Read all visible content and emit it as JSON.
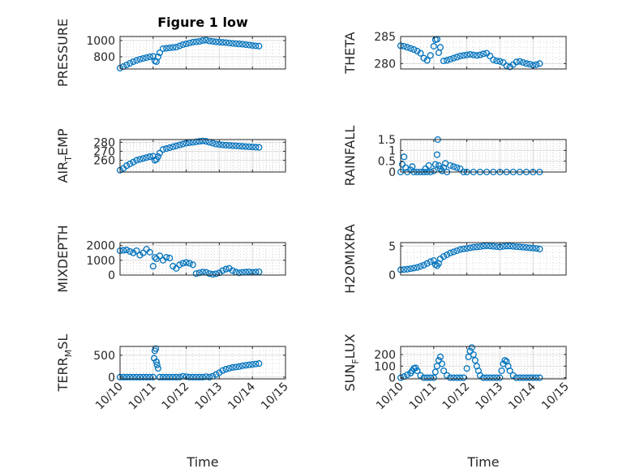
{
  "figure": {
    "marker_color": "#0072bd",
    "xlabel": "Time"
  },
  "chart_data": [
    {
      "type": "scatter",
      "title": "Figure 1 low",
      "ylabel": "PRESSURE",
      "xlabel": "",
      "xlim": [
        0,
        5
      ],
      "ylim": [
        650,
        1050
      ],
      "yticks": [
        800,
        1000
      ],
      "xticks": [
        0,
        1,
        2,
        3,
        4,
        5
      ],
      "xticklabels": [],
      "grid": true,
      "x": [
        0.0,
        0.1,
        0.2,
        0.3,
        0.4,
        0.5,
        0.6,
        0.7,
        0.8,
        0.9,
        1.0,
        1.05,
        1.1,
        1.15,
        1.2,
        1.3,
        1.4,
        1.5,
        1.6,
        1.7,
        1.8,
        1.9,
        2.0,
        2.1,
        2.2,
        2.3,
        2.4,
        2.5,
        2.6,
        2.7,
        2.8,
        2.9,
        3.0,
        3.1,
        3.2,
        3.3,
        3.4,
        3.5,
        3.6,
        3.7,
        3.8,
        3.9,
        4.0,
        4.1,
        4.2
      ],
      "y": [
        660,
        680,
        700,
        720,
        740,
        755,
        770,
        780,
        790,
        800,
        805,
        750,
        740,
        800,
        850,
        900,
        905,
        910,
        915,
        920,
        935,
        950,
        960,
        970,
        980,
        985,
        990,
        1000,
        1005,
        995,
        990,
        985,
        980,
        978,
        975,
        970,
        965,
        962,
        958,
        955,
        950,
        945,
        940,
        935,
        932
      ]
    },
    {
      "type": "scatter",
      "title": "",
      "ylabel": "THETA",
      "xlabel": "",
      "xlim": [
        0,
        5
      ],
      "ylim": [
        279,
        285
      ],
      "yticks": [
        280,
        285
      ],
      "xticks": [
        0,
        1,
        2,
        3,
        4,
        5
      ],
      "xticklabels": [],
      "grid": true,
      "x": [
        0.0,
        0.1,
        0.2,
        0.3,
        0.4,
        0.5,
        0.6,
        0.7,
        0.8,
        0.9,
        1.0,
        1.05,
        1.1,
        1.15,
        1.2,
        1.3,
        1.4,
        1.5,
        1.6,
        1.7,
        1.8,
        1.9,
        2.0,
        2.1,
        2.2,
        2.3,
        2.4,
        2.5,
        2.6,
        2.7,
        2.8,
        2.9,
        3.0,
        3.1,
        3.2,
        3.3,
        3.4,
        3.5,
        3.6,
        3.7,
        3.8,
        3.9,
        4.0,
        4.1,
        4.2
      ],
      "y": [
        283.3,
        283.2,
        283.0,
        282.8,
        282.6,
        282.3,
        281.9,
        281.0,
        280.6,
        281.5,
        283.2,
        284.4,
        284.5,
        282.0,
        283.0,
        280.5,
        280.6,
        280.8,
        281.0,
        281.2,
        281.4,
        281.5,
        281.6,
        281.7,
        281.6,
        281.5,
        281.6,
        281.8,
        281.9,
        281.4,
        280.7,
        280.5,
        280.4,
        280.2,
        279.6,
        279.4,
        279.8,
        280.3,
        280.4,
        280.2,
        280.0,
        279.9,
        279.7,
        279.8,
        280.0
      ]
    },
    {
      "type": "scatter",
      "title": "",
      "ylabel": "AIR_TEMP",
      "xlabel": "",
      "xlim": [
        0,
        5
      ],
      "ylim": [
        247,
        283
      ],
      "yticks": [
        260,
        270,
        280
      ],
      "xticks": [
        0,
        1,
        2,
        3,
        4,
        5
      ],
      "xticklabels": [],
      "grid": true,
      "x": [
        0.0,
        0.1,
        0.2,
        0.3,
        0.4,
        0.5,
        0.6,
        0.7,
        0.8,
        0.9,
        1.0,
        1.05,
        1.1,
        1.15,
        1.2,
        1.3,
        1.4,
        1.5,
        1.6,
        1.7,
        1.8,
        1.9,
        2.0,
        2.1,
        2.2,
        2.3,
        2.4,
        2.5,
        2.6,
        2.7,
        2.8,
        2.9,
        3.0,
        3.1,
        3.2,
        3.3,
        3.4,
        3.5,
        3.6,
        3.7,
        3.8,
        3.9,
        4.0,
        4.1,
        4.2
      ],
      "y": [
        249,
        251,
        254,
        256,
        258,
        260,
        261,
        262,
        263,
        264,
        264.5,
        260,
        261,
        264,
        268,
        272,
        273,
        274,
        275,
        276,
        277,
        278,
        279,
        279.5,
        280,
        280.5,
        281,
        281.5,
        281,
        280,
        279,
        278,
        277.5,
        277,
        276.8,
        276.5,
        276.2,
        276,
        275.8,
        275.5,
        275.2,
        275,
        274.8,
        274.5,
        274.3
      ]
    },
    {
      "type": "scatter",
      "title": "",
      "ylabel": "RAINFALL",
      "xlabel": "",
      "xlim": [
        0,
        5
      ],
      "ylim": [
        0,
        1.5
      ],
      "yticks": [
        0,
        0.5,
        1,
        1.5
      ],
      "xticks": [
        0,
        1,
        2,
        3,
        4,
        5
      ],
      "xticklabels": [],
      "grid": true,
      "x": [
        0.0,
        0.05,
        0.1,
        0.15,
        0.2,
        0.3,
        0.35,
        0.4,
        0.5,
        0.6,
        0.7,
        0.75,
        0.8,
        0.85,
        0.9,
        1.0,
        1.05,
        1.1,
        1.12,
        1.15,
        1.2,
        1.25,
        1.3,
        1.35,
        1.4,
        1.5,
        1.6,
        1.7,
        1.8,
        1.9,
        2.0,
        2.2,
        2.4,
        2.6,
        2.8,
        3.0,
        3.2,
        3.4,
        3.6,
        3.8,
        4.0,
        4.2
      ],
      "y": [
        0,
        0.35,
        0.7,
        0.2,
        0,
        0.1,
        0.25,
        0,
        0,
        0,
        0,
        0.15,
        0,
        0.3,
        0,
        0.05,
        0.35,
        0.8,
        1.5,
        0.3,
        0.15,
        0.05,
        0.2,
        0.4,
        0,
        0.3,
        0.25,
        0.2,
        0.15,
        0,
        0,
        0,
        0,
        0,
        0,
        0,
        0,
        0,
        0,
        0,
        0,
        0
      ]
    },
    {
      "type": "scatter",
      "title": "",
      "ylabel": "MIXDEPTH",
      "xlabel": "",
      "xlim": [
        0,
        5
      ],
      "ylim": [
        0,
        2200
      ],
      "yticks": [
        0,
        1000,
        2000
      ],
      "xticks": [
        0,
        1,
        2,
        3,
        4,
        5
      ],
      "xticklabels": [],
      "grid": true,
      "x": [
        0.0,
        0.1,
        0.2,
        0.3,
        0.4,
        0.5,
        0.6,
        0.7,
        0.8,
        0.9,
        1.0,
        1.05,
        1.1,
        1.2,
        1.3,
        1.4,
        1.5,
        1.6,
        1.7,
        1.8,
        1.9,
        2.0,
        2.1,
        2.2,
        2.3,
        2.4,
        2.5,
        2.6,
        2.7,
        2.8,
        2.9,
        3.0,
        3.1,
        3.2,
        3.3,
        3.4,
        3.5,
        3.6,
        3.7,
        3.8,
        3.9,
        4.0,
        4.1,
        4.2
      ],
      "y": [
        1650,
        1680,
        1700,
        1600,
        1500,
        1650,
        1350,
        1500,
        1750,
        1550,
        600,
        1200,
        1100,
        1300,
        1000,
        1200,
        1150,
        600,
        450,
        700,
        800,
        850,
        800,
        700,
        100,
        150,
        200,
        180,
        100,
        50,
        80,
        150,
        300,
        400,
        450,
        300,
        200,
        150,
        180,
        200,
        220,
        180,
        200,
        220
      ]
    },
    {
      "type": "scatter",
      "title": "",
      "ylabel": "H2OMIXRA",
      "xlabel": "",
      "xlim": [
        0,
        5
      ],
      "ylim": [
        0,
        5.6
      ],
      "yticks": [
        0,
        5
      ],
      "xticks": [
        0,
        1,
        2,
        3,
        4,
        5
      ],
      "xticklabels": [],
      "grid": true,
      "x": [
        0.0,
        0.1,
        0.2,
        0.3,
        0.4,
        0.5,
        0.6,
        0.7,
        0.8,
        0.9,
        1.0,
        1.05,
        1.1,
        1.15,
        1.2,
        1.3,
        1.4,
        1.5,
        1.6,
        1.7,
        1.8,
        1.9,
        2.0,
        2.1,
        2.2,
        2.3,
        2.4,
        2.5,
        2.6,
        2.7,
        2.8,
        2.9,
        3.0,
        3.1,
        3.2,
        3.3,
        3.4,
        3.5,
        3.6,
        3.7,
        3.8,
        3.9,
        4.0,
        4.1,
        4.2
      ],
      "y": [
        0.9,
        0.95,
        1.0,
        1.1,
        1.2,
        1.3,
        1.5,
        1.7,
        2.0,
        2.3,
        2.5,
        1.8,
        1.6,
        2.0,
        2.8,
        3.2,
        3.5,
        3.8,
        4.0,
        4.2,
        4.4,
        4.5,
        4.6,
        4.7,
        4.8,
        4.85,
        4.9,
        5.0,
        5.05,
        5.0,
        4.95,
        4.9,
        4.85,
        4.95,
        5.0,
        5.0,
        4.95,
        4.9,
        4.85,
        4.8,
        4.75,
        4.7,
        4.65,
        4.6,
        4.5
      ]
    },
    {
      "type": "scatter",
      "title": "",
      "ylabel": "TERR_MSL",
      "xlabel": "",
      "xlim": [
        0,
        5
      ],
      "ylim": [
        -40,
        700
      ],
      "yticks": [
        0,
        500
      ],
      "xticks": [
        0,
        1,
        2,
        3,
        4,
        5
      ],
      "xticklabels": [
        "10/10",
        "10/11",
        "10/12",
        "10/13",
        "10/14",
        "10/15"
      ],
      "grid": true,
      "x": [
        0.0,
        0.1,
        0.2,
        0.3,
        0.4,
        0.5,
        0.6,
        0.7,
        0.8,
        0.9,
        1.0,
        1.03,
        1.05,
        1.08,
        1.1,
        1.12,
        1.15,
        1.2,
        1.3,
        1.4,
        1.5,
        1.6,
        1.7,
        1.8,
        1.9,
        2.0,
        2.1,
        2.2,
        2.3,
        2.4,
        2.5,
        2.6,
        2.7,
        2.8,
        2.9,
        3.0,
        3.1,
        3.2,
        3.3,
        3.4,
        3.5,
        3.6,
        3.7,
        3.8,
        3.9,
        4.0,
        4.1,
        4.2
      ],
      "y": [
        0,
        0,
        0,
        0,
        0,
        0,
        0,
        0,
        0,
        0,
        0,
        430,
        600,
        650,
        350,
        280,
        200,
        0,
        0,
        0,
        0,
        0,
        0,
        0,
        20,
        10,
        0,
        0,
        0,
        0,
        0,
        10,
        0,
        20,
        60,
        100,
        150,
        180,
        200,
        220,
        230,
        240,
        260,
        270,
        280,
        290,
        300,
        310
      ]
    },
    {
      "type": "scatter",
      "title": "",
      "ylabel": "SUN_FLUX",
      "xlabel": "",
      "xlim": [
        0,
        5
      ],
      "ylim": [
        -10,
        270
      ],
      "yticks": [
        0,
        100,
        200
      ],
      "xticks": [
        0,
        1,
        2,
        3,
        4,
        5
      ],
      "xticklabels": [
        "10/10",
        "10/11",
        "10/12",
        "10/13",
        "10/14",
        "10/15"
      ],
      "grid": true,
      "x": [
        0.0,
        0.1,
        0.2,
        0.3,
        0.35,
        0.4,
        0.45,
        0.5,
        0.6,
        0.7,
        0.8,
        0.9,
        1.0,
        1.05,
        1.1,
        1.15,
        1.2,
        1.25,
        1.3,
        1.4,
        1.5,
        1.6,
        1.7,
        1.8,
        1.9,
        2.0,
        2.05,
        2.1,
        2.15,
        2.2,
        2.25,
        2.3,
        2.35,
        2.4,
        2.5,
        2.6,
        2.7,
        2.8,
        2.9,
        3.0,
        3.05,
        3.1,
        3.15,
        3.2,
        3.25,
        3.3,
        3.4,
        3.5,
        3.6,
        3.7,
        3.8,
        3.9,
        4.0,
        4.1,
        4.2
      ],
      "y": [
        0,
        10,
        25,
        40,
        60,
        80,
        85,
        60,
        20,
        0,
        0,
        0,
        0,
        50,
        100,
        150,
        180,
        120,
        60,
        20,
        0,
        0,
        0,
        0,
        0,
        80,
        180,
        230,
        260,
        200,
        150,
        100,
        60,
        20,
        0,
        0,
        0,
        0,
        0,
        0,
        60,
        120,
        150,
        140,
        100,
        60,
        20,
        0,
        0,
        0,
        0,
        0,
        0,
        0,
        0
      ]
    }
  ]
}
